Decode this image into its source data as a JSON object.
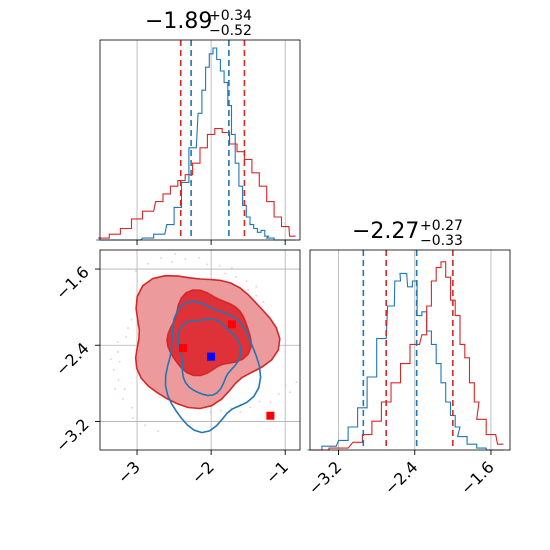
{
  "chart_data": [
    {
      "type": "histogram",
      "panel": "top-left",
      "title": {
        "median": "−1.89",
        "plus": "+0.34",
        "minus": "−0.52"
      },
      "xlim": [
        -3.5,
        -0.8
      ],
      "series": [
        {
          "name": "",
          "color": "#1f77b4",
          "x": [
            -3.45,
            -3.25,
            -3.05,
            -2.85,
            -2.7,
            -2.55,
            -2.45,
            -2.35,
            -2.25,
            -2.15,
            -2.1,
            -2.05,
            -2.0,
            -1.95,
            -1.9,
            -1.85,
            -1.8,
            -1.75,
            -1.7,
            -1.65,
            -1.6,
            -1.55,
            -1.5,
            -1.45,
            -1.4,
            -1.35,
            -1.3,
            -1.25,
            -1.2,
            -1.1,
            -1.0,
            -0.9
          ],
          "y": [
            0,
            0,
            0,
            0.01,
            0.03,
            0.08,
            0.17,
            0.3,
            0.48,
            0.66,
            0.78,
            0.9,
            0.97,
            1.0,
            0.94,
            0.88,
            0.82,
            0.7,
            0.55,
            0.4,
            0.28,
            0.18,
            0.12,
            0.08,
            0.06,
            0.04,
            0.05,
            0.02,
            0.01,
            0,
            0,
            0
          ]
        },
        {
          "name": "",
          "color": "#d62728",
          "x": [
            -3.45,
            -3.3,
            -3.15,
            -3.0,
            -2.85,
            -2.7,
            -2.6,
            -2.5,
            -2.4,
            -2.3,
            -2.2,
            -2.1,
            -2.0,
            -1.9,
            -1.8,
            -1.7,
            -1.6,
            -1.5,
            -1.4,
            -1.3,
            -1.2,
            -1.1,
            -1.0,
            -0.9
          ],
          "y": [
            0.01,
            0.03,
            0.06,
            0.11,
            0.15,
            0.2,
            0.24,
            0.28,
            0.31,
            0.34,
            0.4,
            0.48,
            0.55,
            0.58,
            0.56,
            0.5,
            0.46,
            0.42,
            0.35,
            0.28,
            0.2,
            0.12,
            0.07,
            0.02
          ]
        }
      ],
      "quantiles": [
        {
          "color": "#d62728",
          "x": [
            -2.41,
            -1.55
          ]
        },
        {
          "color": "#1f77b4",
          "x": [
            -2.27,
            -1.76
          ]
        }
      ]
    },
    {
      "type": "contour",
      "panel": "bottom-left",
      "xlim": [
        -3.5,
        -0.8
      ],
      "ylim": [
        -3.5,
        -1.4
      ],
      "xticks": [
        "−3",
        "−2",
        "−1"
      ],
      "xtick_values": [
        -3,
        -2,
        -1
      ],
      "yticks": [
        "−1.6",
        "−2.4",
        "−3.2"
      ],
      "ytick_values": [
        -1.6,
        -2.4,
        -3.2
      ],
      "red_contours": [
        {
          "cx": -2.05,
          "cy": -2.28,
          "rx": 0.55,
          "ry": 0.42,
          "level": "inner"
        },
        {
          "cx": -2.15,
          "cy": -2.33,
          "rx": 0.95,
          "ry": 0.68,
          "level": "outer"
        }
      ],
      "blue_contours": [
        {
          "cx": -2.05,
          "cy": -2.5,
          "rx": 0.4,
          "ry": 0.4,
          "level": "inner"
        },
        {
          "cx": -2.02,
          "cy": -2.62,
          "rx": 0.62,
          "ry": 0.65,
          "level": "outer"
        }
      ],
      "markers": [
        {
          "color": "#ff0000",
          "x": -1.72,
          "y": -2.18
        },
        {
          "color": "#ff0000",
          "x": -1.2,
          "y": -3.14
        },
        {
          "color": "#ff0000",
          "x": -2.38,
          "y": -2.43
        },
        {
          "color": "#0000ff",
          "x": -2.0,
          "y": -2.52
        }
      ]
    },
    {
      "type": "histogram",
      "panel": "bottom-right",
      "title": {
        "median": "−2.27",
        "plus": "+0.27",
        "minus": "−0.33"
      },
      "xlim": [
        -3.5,
        -1.4
      ],
      "xticks": [
        "−3.2",
        "−2.4",
        "−1.6"
      ],
      "xtick_values": [
        -3.2,
        -2.4,
        -1.6
      ],
      "series": [
        {
          "name": "",
          "color": "#1f77b4",
          "x": [
            -3.45,
            -3.3,
            -3.15,
            -3.05,
            -2.95,
            -2.85,
            -2.75,
            -2.65,
            -2.58,
            -2.52,
            -2.45,
            -2.4,
            -2.35,
            -2.3,
            -2.25,
            -2.2,
            -2.15,
            -2.1,
            -2.05,
            -2.0,
            -1.95,
            -1.9,
            -1.8,
            -1.7,
            -1.6,
            -1.5
          ],
          "y": [
            0,
            0.02,
            0.05,
            0.12,
            0.22,
            0.38,
            0.58,
            0.75,
            0.88,
            0.92,
            0.85,
            0.88,
            0.7,
            0.72,
            0.62,
            0.55,
            0.45,
            0.35,
            0.25,
            0.18,
            0.12,
            0.07,
            0.03,
            0.01,
            0,
            0
          ]
        },
        {
          "name": "",
          "color": "#d62728",
          "x": [
            -3.4,
            -3.2,
            -3.0,
            -2.9,
            -2.8,
            -2.7,
            -2.6,
            -2.5,
            -2.4,
            -2.3,
            -2.25,
            -2.2,
            -2.15,
            -2.1,
            -2.05,
            -2.0,
            -1.95,
            -1.9,
            -1.85,
            -1.8,
            -1.75,
            -1.7,
            -1.6,
            -1.5
          ],
          "y": [
            0,
            0.01,
            0.04,
            0.08,
            0.15,
            0.25,
            0.35,
            0.45,
            0.55,
            0.6,
            0.75,
            0.88,
            0.95,
            0.98,
            0.9,
            0.78,
            0.7,
            0.55,
            0.48,
            0.35,
            0.25,
            0.16,
            0.08,
            0.03
          ]
        }
      ],
      "quantiles": [
        {
          "color": "#1f77b4",
          "x": [
            -2.94,
            -2.38
          ]
        },
        {
          "color": "#d62728",
          "x": [
            -2.7,
            -2.0
          ]
        }
      ]
    }
  ]
}
